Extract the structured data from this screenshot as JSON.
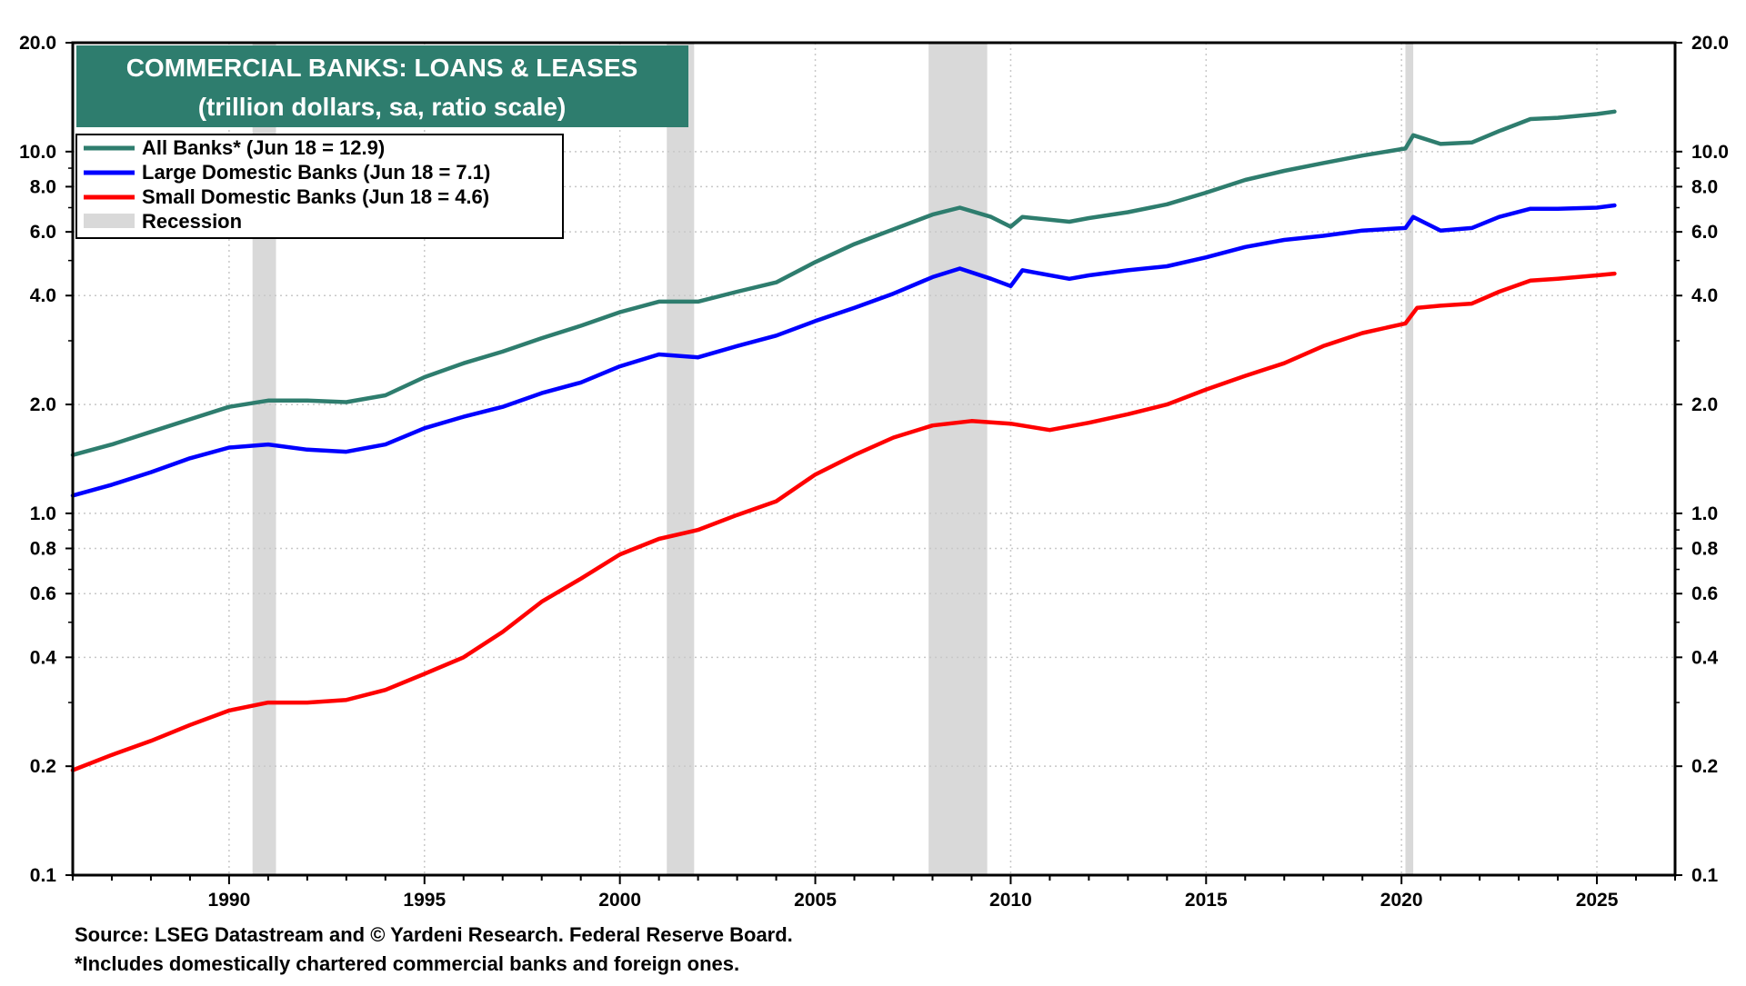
{
  "chart_data": {
    "type": "line",
    "title": "COMMERCIAL BANKS: LOANS & LEASES",
    "subtitle": "(trillion dollars, sa, ratio scale)",
    "x_range": [
      1986.0,
      2027.0
    ],
    "x_ticks": [
      "1990",
      "1995",
      "2000",
      "2005",
      "2010",
      "2015",
      "2020",
      "2025"
    ],
    "y_scale": "log",
    "ylim": [
      0.1,
      20.0
    ],
    "y_ticks": [
      "0.1",
      "0.2",
      "0.4",
      "0.6",
      "0.8",
      "1.0",
      "2.0",
      "4.0",
      "6.0",
      "8.0",
      "10.0",
      "20.0"
    ],
    "grid": true,
    "legend_position": "top-left",
    "recessions": [
      [
        1990.6,
        1991.2
      ],
      [
        2001.2,
        2001.9
      ],
      [
        2007.9,
        2009.4
      ],
      [
        2020.1,
        2020.3
      ]
    ],
    "recession_color": "#d9d9d9",
    "series": [
      {
        "name": "All Banks* (Jun 18 = 12.9)",
        "color": "#2e7d6e",
        "points": [
          [
            1986.0,
            1.45
          ],
          [
            1987.0,
            1.55
          ],
          [
            1988.0,
            1.68
          ],
          [
            1989.0,
            1.82
          ],
          [
            1990.0,
            1.97
          ],
          [
            1991.0,
            2.05
          ],
          [
            1992.0,
            2.05
          ],
          [
            1993.0,
            2.03
          ],
          [
            1994.0,
            2.12
          ],
          [
            1995.0,
            2.38
          ],
          [
            1996.0,
            2.6
          ],
          [
            1997.0,
            2.8
          ],
          [
            1998.0,
            3.05
          ],
          [
            1999.0,
            3.3
          ],
          [
            2000.0,
            3.6
          ],
          [
            2001.0,
            3.85
          ],
          [
            2002.0,
            3.85
          ],
          [
            2003.0,
            4.1
          ],
          [
            2004.0,
            4.35
          ],
          [
            2005.0,
            4.95
          ],
          [
            2006.0,
            5.55
          ],
          [
            2007.0,
            6.1
          ],
          [
            2008.0,
            6.7
          ],
          [
            2008.7,
            7.0
          ],
          [
            2009.5,
            6.6
          ],
          [
            2010.0,
            6.2
          ],
          [
            2010.3,
            6.6
          ],
          [
            2011.5,
            6.4
          ],
          [
            2012.0,
            6.55
          ],
          [
            2013.0,
            6.8
          ],
          [
            2014.0,
            7.15
          ],
          [
            2015.0,
            7.7
          ],
          [
            2016.0,
            8.35
          ],
          [
            2017.0,
            8.85
          ],
          [
            2018.0,
            9.3
          ],
          [
            2019.0,
            9.75
          ],
          [
            2020.1,
            10.2
          ],
          [
            2020.3,
            11.1
          ],
          [
            2021.0,
            10.5
          ],
          [
            2021.8,
            10.6
          ],
          [
            2022.5,
            11.4
          ],
          [
            2023.3,
            12.3
          ],
          [
            2024.0,
            12.4
          ],
          [
            2025.0,
            12.7
          ],
          [
            2025.45,
            12.9
          ]
        ]
      },
      {
        "name": "Large Domestic Banks (Jun 18 = 7.1)",
        "color": "#0000ff",
        "points": [
          [
            1986.0,
            1.12
          ],
          [
            1987.0,
            1.2
          ],
          [
            1988.0,
            1.3
          ],
          [
            1989.0,
            1.42
          ],
          [
            1990.0,
            1.52
          ],
          [
            1991.0,
            1.55
          ],
          [
            1992.0,
            1.5
          ],
          [
            1993.0,
            1.48
          ],
          [
            1994.0,
            1.55
          ],
          [
            1995.0,
            1.72
          ],
          [
            1996.0,
            1.85
          ],
          [
            1997.0,
            1.97
          ],
          [
            1998.0,
            2.15
          ],
          [
            1999.0,
            2.3
          ],
          [
            2000.0,
            2.55
          ],
          [
            2001.0,
            2.75
          ],
          [
            2002.0,
            2.7
          ],
          [
            2003.0,
            2.9
          ],
          [
            2004.0,
            3.1
          ],
          [
            2005.0,
            3.4
          ],
          [
            2006.0,
            3.7
          ],
          [
            2007.0,
            4.05
          ],
          [
            2008.0,
            4.5
          ],
          [
            2008.7,
            4.75
          ],
          [
            2009.5,
            4.45
          ],
          [
            2010.0,
            4.25
          ],
          [
            2010.3,
            4.7
          ],
          [
            2011.5,
            4.45
          ],
          [
            2012.0,
            4.55
          ],
          [
            2013.0,
            4.7
          ],
          [
            2014.0,
            4.82
          ],
          [
            2015.0,
            5.1
          ],
          [
            2016.0,
            5.45
          ],
          [
            2017.0,
            5.7
          ],
          [
            2018.0,
            5.85
          ],
          [
            2019.0,
            6.05
          ],
          [
            2020.1,
            6.15
          ],
          [
            2020.3,
            6.6
          ],
          [
            2021.0,
            6.05
          ],
          [
            2021.8,
            6.15
          ],
          [
            2022.5,
            6.6
          ],
          [
            2023.3,
            6.95
          ],
          [
            2024.0,
            6.95
          ],
          [
            2025.0,
            7.0
          ],
          [
            2025.45,
            7.1
          ]
        ]
      },
      {
        "name": "Small Domestic Banks (Jun 18 = 4.6)",
        "color": "#ff0000",
        "points": [
          [
            1986.0,
            0.195
          ],
          [
            1987.0,
            0.215
          ],
          [
            1988.0,
            0.235
          ],
          [
            1989.0,
            0.26
          ],
          [
            1990.0,
            0.285
          ],
          [
            1991.0,
            0.3
          ],
          [
            1992.0,
            0.3
          ],
          [
            1993.0,
            0.305
          ],
          [
            1994.0,
            0.325
          ],
          [
            1995.0,
            0.36
          ],
          [
            1996.0,
            0.4
          ],
          [
            1997.0,
            0.47
          ],
          [
            1998.0,
            0.57
          ],
          [
            1999.0,
            0.66
          ],
          [
            2000.0,
            0.77
          ],
          [
            2001.0,
            0.85
          ],
          [
            2002.0,
            0.9
          ],
          [
            2003.0,
            0.99
          ],
          [
            2004.0,
            1.08
          ],
          [
            2005.0,
            1.28
          ],
          [
            2006.0,
            1.45
          ],
          [
            2007.0,
            1.62
          ],
          [
            2008.0,
            1.75
          ],
          [
            2009.0,
            1.8
          ],
          [
            2010.0,
            1.77
          ],
          [
            2011.0,
            1.7
          ],
          [
            2012.0,
            1.78
          ],
          [
            2013.0,
            1.88
          ],
          [
            2014.0,
            2.0
          ],
          [
            2015.0,
            2.2
          ],
          [
            2016.0,
            2.4
          ],
          [
            2017.0,
            2.6
          ],
          [
            2018.0,
            2.9
          ],
          [
            2019.0,
            3.15
          ],
          [
            2020.1,
            3.35
          ],
          [
            2020.4,
            3.7
          ],
          [
            2021.0,
            3.75
          ],
          [
            2021.8,
            3.8
          ],
          [
            2022.5,
            4.1
          ],
          [
            2023.3,
            4.4
          ],
          [
            2024.0,
            4.45
          ],
          [
            2025.0,
            4.55
          ],
          [
            2025.45,
            4.6
          ]
        ]
      }
    ],
    "legend_extra": "Recession"
  },
  "footnotes": {
    "source": "Source: LSEG Datastream and © Yardeni Research. Federal Reserve Board.",
    "note": "*Includes domestically chartered commercial banks and foreign ones."
  }
}
